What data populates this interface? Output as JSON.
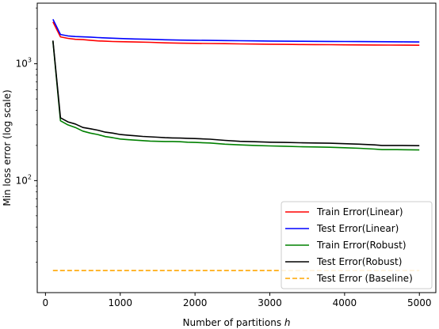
{
  "chart_data": {
    "type": "line",
    "xlabel": "Number of partitions h",
    "ylabel": "Min loss error (log scale)",
    "yscale": "log",
    "xlim": [
      -110,
      5220
    ],
    "ylim": [
      11,
      3300
    ],
    "xticks": [
      0,
      1000,
      2000,
      3000,
      4000,
      5000
    ],
    "xtick_labels": [
      "0",
      "1000",
      "2000",
      "3000",
      "4000",
      "5000"
    ],
    "yticks": [
      100,
      1000
    ],
    "ytick_labels": [
      "10^2",
      "10^3"
    ],
    "grid": false,
    "legend_position": "lower-right",
    "series": [
      {
        "name": "Train Error(Linear)",
        "color": "#ff0000",
        "dash": "solid",
        "x": [
          100,
          200,
          300,
          400,
          500,
          600,
          700,
          800,
          900,
          1000,
          1200,
          1400,
          1600,
          1800,
          2000,
          2200,
          2400,
          2600,
          2800,
          3000,
          3200,
          3400,
          3600,
          3800,
          4000,
          4200,
          4400,
          4600,
          4800,
          5000
        ],
        "y": [
          2280,
          1700,
          1650,
          1620,
          1610,
          1590,
          1570,
          1560,
          1550,
          1545,
          1535,
          1525,
          1510,
          1500,
          1495,
          1490,
          1485,
          1480,
          1475,
          1470,
          1465,
          1460,
          1458,
          1455,
          1452,
          1450,
          1448,
          1445,
          1443,
          1440
        ]
      },
      {
        "name": "Test Error(Linear)",
        "color": "#0000ff",
        "dash": "solid",
        "x": [
          100,
          200,
          300,
          400,
          500,
          600,
          700,
          800,
          900,
          1000,
          1200,
          1400,
          1600,
          1800,
          2000,
          2200,
          2400,
          2600,
          2800,
          3000,
          3200,
          3400,
          3600,
          3800,
          4000,
          4200,
          4400,
          4600,
          4800,
          5000
        ],
        "y": [
          2400,
          1780,
          1730,
          1710,
          1700,
          1690,
          1675,
          1665,
          1655,
          1645,
          1630,
          1620,
          1605,
          1595,
          1590,
          1585,
          1580,
          1575,
          1570,
          1565,
          1560,
          1557,
          1555,
          1552,
          1550,
          1548,
          1545,
          1542,
          1540,
          1535
        ]
      },
      {
        "name": "Train Error(Robust)",
        "color": "#008000",
        "dash": "solid",
        "x": [
          100,
          200,
          300,
          400,
          500,
          600,
          700,
          800,
          900,
          1000,
          1100,
          1200,
          1300,
          1400,
          1500,
          1600,
          1700,
          1800,
          1900,
          2000,
          2200,
          2400,
          2600,
          2800,
          3000,
          3200,
          3400,
          3600,
          3800,
          4000,
          4200,
          4400,
          4500,
          4700,
          5000
        ],
        "y": [
          1560,
          325,
          300,
          285,
          265,
          255,
          248,
          238,
          233,
          227,
          224,
          222,
          220,
          218,
          217,
          216,
          216,
          215,
          213,
          212,
          210,
          205,
          202,
          200,
          198,
          197,
          195,
          194,
          193,
          191,
          189,
          186,
          184,
          184,
          183
        ]
      },
      {
        "name": "Test Error(Robust)",
        "color": "#000000",
        "dash": "solid",
        "x": [
          100,
          200,
          300,
          400,
          500,
          600,
          700,
          800,
          900,
          1000,
          1100,
          1200,
          1300,
          1400,
          1500,
          1600,
          1700,
          1800,
          1900,
          2000,
          2200,
          2400,
          2600,
          2800,
          3000,
          3200,
          3400,
          3600,
          3800,
          4000,
          4200,
          4400,
          4500,
          4700,
          5000
        ],
        "y": [
          1580,
          345,
          318,
          305,
          285,
          278,
          270,
          260,
          255,
          248,
          245,
          242,
          239,
          237,
          235,
          233,
          232,
          231,
          230,
          229,
          226,
          221,
          217,
          215,
          213,
          212,
          211,
          210,
          209,
          207,
          205,
          202,
          200,
          200,
          199
        ]
      },
      {
        "name": "Test Error (Baseline)",
        "color": "#ffa500",
        "dash": "dashed",
        "x": [
          100,
          5000
        ],
        "y": [
          17,
          17
        ]
      }
    ]
  }
}
